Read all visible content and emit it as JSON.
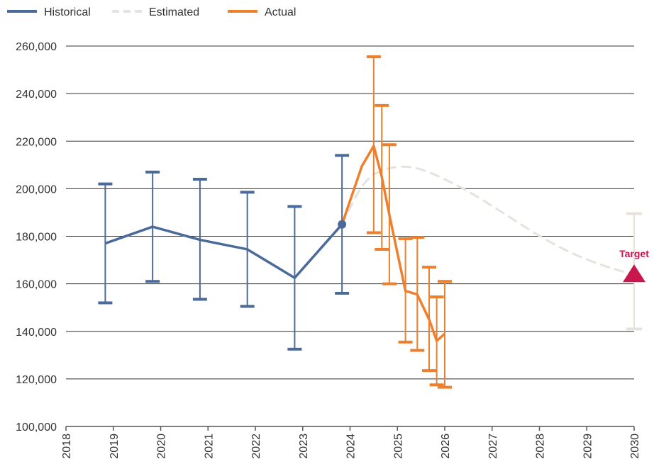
{
  "colors": {
    "historical": "#4a6a99",
    "estimated": "#e6e3de",
    "actual": "#ee7f2d",
    "target": "#c8174d",
    "grid": "#333333",
    "axis": "#555555"
  },
  "chart_data": {
    "type": "line",
    "xlim": [
      2018,
      2030
    ],
    "ylim": [
      100000,
      260000
    ],
    "x_ticks": [
      "2018",
      "2019",
      "2020",
      "2021",
      "2022",
      "2023",
      "2024",
      "2025",
      "2026",
      "2027",
      "2028",
      "2029",
      "2030"
    ],
    "y_ticks": [
      "100,000",
      "120,000",
      "140,000",
      "160,000",
      "180,000",
      "200,000",
      "220,000",
      "240,000",
      "260,000"
    ],
    "grid": "horizontal",
    "legend": {
      "position": "top-left",
      "items": [
        {
          "label": "Historical",
          "style": "solid",
          "color": "#4a6a99"
        },
        {
          "label": "Estimated",
          "style": "dashed",
          "color": "#e6e3de"
        },
        {
          "label": "Actual",
          "style": "solid",
          "color": "#ee7f2d"
        }
      ]
    },
    "series": [
      {
        "name": "Historical",
        "points": [
          {
            "x": 2018.83,
            "y": 177000,
            "low": 152000,
            "high": 202000
          },
          {
            "x": 2019.83,
            "y": 184000,
            "low": 161000,
            "high": 207000
          },
          {
            "x": 2020.83,
            "y": 178500,
            "low": 153500,
            "high": 204000
          },
          {
            "x": 2021.83,
            "y": 174500,
            "low": 150500,
            "high": 198500
          },
          {
            "x": 2022.83,
            "y": 162500,
            "low": 132500,
            "high": 192500
          },
          {
            "x": 2023.83,
            "y": 185000,
            "low": 156000,
            "high": 214000
          }
        ]
      },
      {
        "name": "Estimated",
        "points": [
          {
            "x": 2023.83,
            "y": 185000
          },
          {
            "x": 2024.3,
            "y": 204000
          },
          {
            "x": 2024.8,
            "y": 209000
          },
          {
            "x": 2025.3,
            "y": 209500
          },
          {
            "x": 2025.8,
            "y": 206000
          },
          {
            "x": 2026.5,
            "y": 199000
          },
          {
            "x": 2027.3,
            "y": 189000
          },
          {
            "x": 2028.0,
            "y": 180000
          },
          {
            "x": 2028.7,
            "y": 172500
          },
          {
            "x": 2029.5,
            "y": 166500
          },
          {
            "x": 2030.0,
            "y": 164000
          }
        ],
        "error_bar": {
          "x": 2030.0,
          "low": 141000,
          "high": 189500
        }
      },
      {
        "name": "Actual",
        "points": [
          {
            "x": 2023.83,
            "y": 185000
          },
          {
            "x": 2024.25,
            "y": 209500
          },
          {
            "x": 2024.5,
            "y": 218000,
            "low": 181500,
            "high": 255500
          },
          {
            "x": 2024.67,
            "y": 205000,
            "low": 174500,
            "high": 235000
          },
          {
            "x": 2024.83,
            "y": 189000,
            "low": 160000,
            "high": 218500
          },
          {
            "x": 2025.17,
            "y": 157000,
            "low": 135500,
            "high": 179000
          },
          {
            "x": 2025.42,
            "y": 155500,
            "low": 132000,
            "high": 179500
          },
          {
            "x": 2025.67,
            "y": 145000,
            "low": 123500,
            "high": 167000
          },
          {
            "x": 2025.83,
            "y": 136000,
            "low": 117500,
            "high": 154500
          },
          {
            "x": 2026.0,
            "y": 139000,
            "low": 116500,
            "high": 161000
          }
        ]
      }
    ],
    "target": {
      "label": "Target",
      "x": 2030.0,
      "y": 164000
    }
  }
}
